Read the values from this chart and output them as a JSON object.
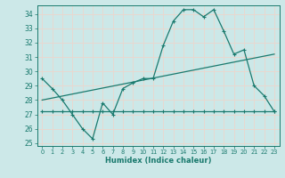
{
  "xlabel": "Humidex (Indice chaleur)",
  "bg_color": "#cce8e8",
  "grid_color": "#e8d8d0",
  "line_color": "#1a7a6e",
  "xlim": [
    -0.5,
    23.5
  ],
  "ylim": [
    24.8,
    34.6
  ],
  "yticks": [
    25,
    26,
    27,
    28,
    29,
    30,
    31,
    32,
    33,
    34
  ],
  "xticks": [
    0,
    1,
    2,
    3,
    4,
    5,
    6,
    7,
    8,
    9,
    10,
    11,
    12,
    13,
    14,
    15,
    16,
    17,
    18,
    19,
    20,
    21,
    22,
    23
  ],
  "curve1_x": [
    0,
    1,
    2,
    3,
    4,
    5,
    6,
    7,
    8,
    9,
    10,
    11,
    12,
    13,
    14,
    15,
    16,
    17,
    18,
    19,
    20,
    21,
    22,
    23
  ],
  "curve1_y": [
    29.5,
    28.8,
    28.0,
    27.0,
    26.0,
    25.3,
    27.8,
    27.0,
    28.8,
    29.2,
    29.5,
    29.5,
    31.8,
    33.5,
    34.3,
    34.3,
    33.8,
    34.3,
    32.8,
    31.2,
    31.5,
    29.0,
    28.3,
    27.2
  ],
  "curve2_x": [
    0,
    1,
    2,
    3,
    4,
    5,
    6,
    7,
    8,
    9,
    10,
    11,
    12,
    13,
    14,
    15,
    16,
    17,
    18,
    19,
    20,
    21,
    22,
    23
  ],
  "curve2_y": [
    27.2,
    27.2,
    27.2,
    27.2,
    27.2,
    27.2,
    27.2,
    27.2,
    27.2,
    27.2,
    27.2,
    27.2,
    27.2,
    27.2,
    27.2,
    27.2,
    27.2,
    27.2,
    27.2,
    27.2,
    27.2,
    27.2,
    27.2,
    27.2
  ],
  "curve3_x": [
    0,
    23
  ],
  "curve3_y": [
    28.0,
    31.2
  ]
}
